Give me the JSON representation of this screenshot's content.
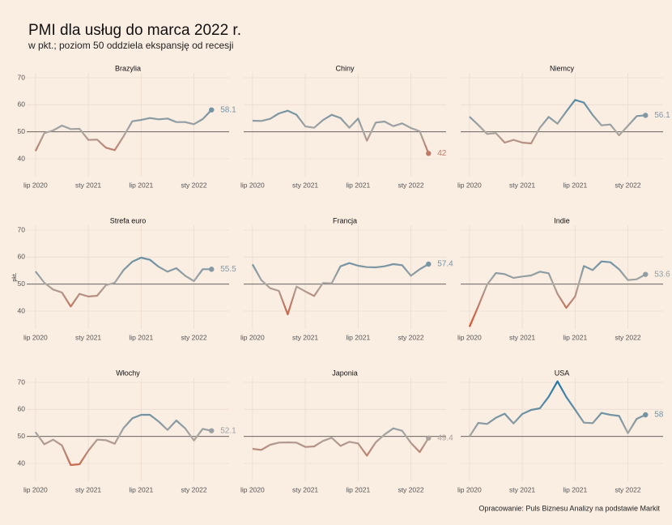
{
  "title": "PMI dla usług do marca 2022 r.",
  "subtitle": "w pkt.; poziom 50 oddziela ekspansję od recesji",
  "source": "Opracowanie: Puls Biznesu Analizy na podstawie Markit",
  "color_scale": {
    "domain": [
      35,
      50,
      70
    ],
    "colors": [
      "#d4532f",
      "#aaa6a2",
      "#1f78a8"
    ]
  },
  "chart_data": [
    {
      "type": "line",
      "title": "Brazylia",
      "x": [
        "2020-07",
        "2020-08",
        "2020-09",
        "2020-10",
        "2020-11",
        "2020-12",
        "2021-01",
        "2021-02",
        "2021-03",
        "2021-04",
        "2021-05",
        "2021-06",
        "2021-07",
        "2021-08",
        "2021-09",
        "2021-10",
        "2021-11",
        "2021-12",
        "2022-01",
        "2022-02",
        "2022-03"
      ],
      "values": [
        42.9,
        49.5,
        50.5,
        52.3,
        51.0,
        51.1,
        47.0,
        47.1,
        44.1,
        43.2,
        48.3,
        53.9,
        54.4,
        55.1,
        54.6,
        54.9,
        53.6,
        53.6,
        52.8,
        54.7,
        58.1
      ],
      "xlim": [
        "2020-06",
        "2022-05"
      ],
      "ylim": [
        33.4,
        71.8
      ],
      "xticks": [
        {
          "value": "2020-07",
          "label": "lip 2020"
        },
        {
          "value": "2021-01",
          "label": "sty 2021"
        },
        {
          "value": "2021-07",
          "label": "lip 2021"
        },
        {
          "value": "2022-01",
          "label": "sty 2022"
        }
      ],
      "yticks": [
        40,
        50,
        60,
        70
      ],
      "hline": 50
    },
    {
      "type": "line",
      "title": "Chiny",
      "x": [
        "2020-07",
        "2020-08",
        "2020-09",
        "2020-10",
        "2020-11",
        "2020-12",
        "2021-01",
        "2021-02",
        "2021-03",
        "2021-04",
        "2021-05",
        "2021-06",
        "2021-07",
        "2021-08",
        "2021-09",
        "2021-10",
        "2021-11",
        "2021-12",
        "2022-01",
        "2022-02",
        "2022-03"
      ],
      "values": [
        54.1,
        54.0,
        54.8,
        56.8,
        57.8,
        56.3,
        52.0,
        51.5,
        54.3,
        56.3,
        55.1,
        51.5,
        54.9,
        46.7,
        53.4,
        53.8,
        52.1,
        53.1,
        51.4,
        50.2,
        42
      ],
      "xlim": [
        "2020-06",
        "2022-05"
      ],
      "ylim": [
        33.4,
        71.8
      ],
      "xticks": [
        {
          "value": "2020-07",
          "label": "lip 2020"
        },
        {
          "value": "2021-01",
          "label": "sty 2021"
        },
        {
          "value": "2021-07",
          "label": "lip 2021"
        },
        {
          "value": "2022-01",
          "label": "sty 2022"
        }
      ],
      "yticks": [
        40,
        50,
        60,
        70
      ],
      "hline": 50
    },
    {
      "type": "line",
      "title": "Niemcy",
      "x": [
        "2020-07",
        "2020-08",
        "2020-09",
        "2020-10",
        "2020-11",
        "2020-12",
        "2021-01",
        "2021-02",
        "2021-03",
        "2021-04",
        "2021-05",
        "2021-06",
        "2021-07",
        "2021-08",
        "2021-09",
        "2021-10",
        "2021-11",
        "2021-12",
        "2022-01",
        "2022-02",
        "2022-03"
      ],
      "values": [
        55.6,
        52.5,
        49.2,
        49.5,
        46.0,
        47.0,
        46.0,
        45.7,
        51.5,
        55.5,
        53.0,
        57.5,
        61.8,
        60.8,
        56.2,
        52.4,
        52.7,
        48.7,
        52.2,
        55.8,
        56.1
      ],
      "xlim": [
        "2020-06",
        "2022-05"
      ],
      "ylim": [
        33.4,
        71.8
      ],
      "xticks": [
        {
          "value": "2020-07",
          "label": "lip 2020"
        },
        {
          "value": "2021-01",
          "label": "sty 2021"
        },
        {
          "value": "2021-07",
          "label": "lip 2021"
        },
        {
          "value": "2022-01",
          "label": "sty 2022"
        }
      ],
      "yticks": [
        40,
        50,
        60,
        70
      ],
      "hline": 50
    },
    {
      "type": "line",
      "title": "Strefa euro",
      "ylabel": "pkt.",
      "x": [
        "2020-07",
        "2020-08",
        "2020-09",
        "2020-10",
        "2020-11",
        "2020-12",
        "2021-01",
        "2021-02",
        "2021-03",
        "2021-04",
        "2021-05",
        "2021-06",
        "2021-07",
        "2021-08",
        "2021-09",
        "2021-10",
        "2021-11",
        "2021-12",
        "2022-01",
        "2022-02",
        "2022-03"
      ],
      "values": [
        54.7,
        50.5,
        48.0,
        46.9,
        41.7,
        46.4,
        45.4,
        45.7,
        49.6,
        50.5,
        55.2,
        58.3,
        59.8,
        59.0,
        56.4,
        54.6,
        55.9,
        53.1,
        51.1,
        55.5,
        55.5
      ],
      "xlim": [
        "2020-06",
        "2022-05"
      ],
      "ylim": [
        33.4,
        71.8
      ],
      "xticks": [
        {
          "value": "2020-07",
          "label": "lip 2020"
        },
        {
          "value": "2021-01",
          "label": "sty 2021"
        },
        {
          "value": "2021-07",
          "label": "lip 2021"
        },
        {
          "value": "2022-01",
          "label": "sty 2022"
        }
      ],
      "yticks": [
        40,
        50,
        60,
        70
      ],
      "hline": 50
    },
    {
      "type": "line",
      "title": "Francja",
      "x": [
        "2020-07",
        "2020-08",
        "2020-09",
        "2020-10",
        "2020-11",
        "2020-12",
        "2021-01",
        "2021-02",
        "2021-03",
        "2021-04",
        "2021-05",
        "2021-06",
        "2021-07",
        "2021-08",
        "2021-09",
        "2021-10",
        "2021-11",
        "2021-12",
        "2022-01",
        "2022-02",
        "2022-03"
      ],
      "values": [
        57.3,
        51.5,
        48.5,
        47.5,
        38.8,
        49.1,
        47.3,
        45.6,
        50.4,
        50.3,
        56.6,
        57.8,
        56.8,
        56.3,
        56.2,
        56.6,
        57.4,
        57.0,
        53.1,
        55.5,
        57.4
      ],
      "xlim": [
        "2020-06",
        "2022-05"
      ],
      "ylim": [
        33.4,
        71.8
      ],
      "xticks": [
        {
          "value": "2020-07",
          "label": "lip 2020"
        },
        {
          "value": "2021-01",
          "label": "sty 2021"
        },
        {
          "value": "2021-07",
          "label": "lip 2021"
        },
        {
          "value": "2022-01",
          "label": "sty 2022"
        }
      ],
      "yticks": [
        40,
        50,
        60,
        70
      ],
      "hline": 50
    },
    {
      "type": "line",
      "title": "Indie",
      "x": [
        "2020-07",
        "2020-08",
        "2020-09",
        "2020-10",
        "2020-11",
        "2020-12",
        "2021-01",
        "2021-02",
        "2021-03",
        "2021-04",
        "2021-05",
        "2021-06",
        "2021-07",
        "2021-08",
        "2021-09",
        "2021-10",
        "2021-11",
        "2021-12",
        "2022-01",
        "2022-02",
        "2022-03"
      ],
      "values": [
        34.2,
        41.8,
        49.8,
        54.1,
        53.7,
        52.3,
        52.8,
        53.2,
        54.6,
        54.0,
        46.4,
        41.2,
        45.4,
        56.7,
        55.2,
        58.4,
        58.1,
        55.5,
        51.5,
        51.8,
        53.6
      ],
      "xlim": [
        "2020-06",
        "2022-05"
      ],
      "ylim": [
        33.4,
        71.8
      ],
      "xticks": [
        {
          "value": "2020-07",
          "label": "lip 2020"
        },
        {
          "value": "2021-01",
          "label": "sty 2021"
        },
        {
          "value": "2021-07",
          "label": "lip 2021"
        },
        {
          "value": "2022-01",
          "label": "sty 2022"
        }
      ],
      "yticks": [
        40,
        50,
        60,
        70
      ],
      "hline": 50
    },
    {
      "type": "line",
      "title": "Włochy",
      "x": [
        "2020-07",
        "2020-08",
        "2020-09",
        "2020-10",
        "2020-11",
        "2020-12",
        "2021-01",
        "2021-02",
        "2021-03",
        "2021-04",
        "2021-05",
        "2021-06",
        "2021-07",
        "2021-08",
        "2021-09",
        "2021-10",
        "2021-11",
        "2021-12",
        "2022-01",
        "2022-02",
        "2022-03"
      ],
      "values": [
        51.6,
        47.1,
        48.8,
        46.7,
        39.4,
        39.7,
        44.7,
        48.8,
        48.6,
        47.3,
        53.1,
        56.7,
        58.0,
        58.0,
        55.5,
        52.4,
        55.9,
        53.0,
        48.5,
        52.8,
        52.1
      ],
      "xlim": [
        "2020-06",
        "2022-05"
      ],
      "ylim": [
        33.4,
        71.8
      ],
      "xticks": [
        {
          "value": "2020-07",
          "label": "lip 2020"
        },
        {
          "value": "2021-01",
          "label": "sty 2021"
        },
        {
          "value": "2021-07",
          "label": "lip 2021"
        },
        {
          "value": "2022-01",
          "label": "sty 2022"
        }
      ],
      "yticks": [
        40,
        50,
        60,
        70
      ],
      "hline": 50
    },
    {
      "type": "line",
      "title": "Japonia",
      "x": [
        "2020-07",
        "2020-08",
        "2020-09",
        "2020-10",
        "2020-11",
        "2020-12",
        "2021-01",
        "2021-02",
        "2021-03",
        "2021-04",
        "2021-05",
        "2021-06",
        "2021-07",
        "2021-08",
        "2021-09",
        "2021-10",
        "2021-11",
        "2021-12",
        "2022-01",
        "2022-02",
        "2022-03"
      ],
      "values": [
        45.4,
        45.0,
        46.9,
        47.7,
        47.8,
        47.7,
        46.1,
        46.3,
        48.3,
        49.5,
        46.5,
        48.0,
        47.4,
        42.9,
        47.8,
        50.7,
        53.0,
        52.1,
        47.6,
        44.2,
        49.4
      ],
      "xlim": [
        "2020-06",
        "2022-05"
      ],
      "ylim": [
        33.4,
        71.8
      ],
      "xticks": [
        {
          "value": "2020-07",
          "label": "lip 2020"
        },
        {
          "value": "2021-01",
          "label": "sty 2021"
        },
        {
          "value": "2021-07",
          "label": "lip 2021"
        },
        {
          "value": "2022-01",
          "label": "sty 2022"
        }
      ],
      "yticks": [
        40,
        50,
        60,
        70
      ],
      "hline": 50
    },
    {
      "type": "line",
      "title": "USA",
      "x": [
        "2020-07",
        "2020-08",
        "2020-09",
        "2020-10",
        "2020-11",
        "2020-12",
        "2021-01",
        "2021-02",
        "2021-03",
        "2021-04",
        "2021-05",
        "2021-06",
        "2021-07",
        "2021-08",
        "2021-09",
        "2021-10",
        "2021-11",
        "2021-12",
        "2022-01",
        "2022-02",
        "2022-03"
      ],
      "values": [
        50.0,
        55.0,
        54.6,
        56.9,
        58.4,
        54.8,
        58.3,
        59.8,
        60.4,
        64.7,
        70.4,
        64.6,
        59.9,
        55.1,
        54.9,
        58.7,
        58.0,
        57.6,
        51.2,
        56.5,
        58
      ],
      "xlim": [
        "2020-06",
        "2022-05"
      ],
      "ylim": [
        33.4,
        71.8
      ],
      "xticks": [
        {
          "value": "2020-07",
          "label": "lip 2020"
        },
        {
          "value": "2021-01",
          "label": "sty 2021"
        },
        {
          "value": "2021-07",
          "label": "lip 2021"
        },
        {
          "value": "2022-01",
          "label": "sty 2022"
        }
      ],
      "yticks": [
        40,
        50,
        60,
        70
      ],
      "hline": 50
    }
  ]
}
